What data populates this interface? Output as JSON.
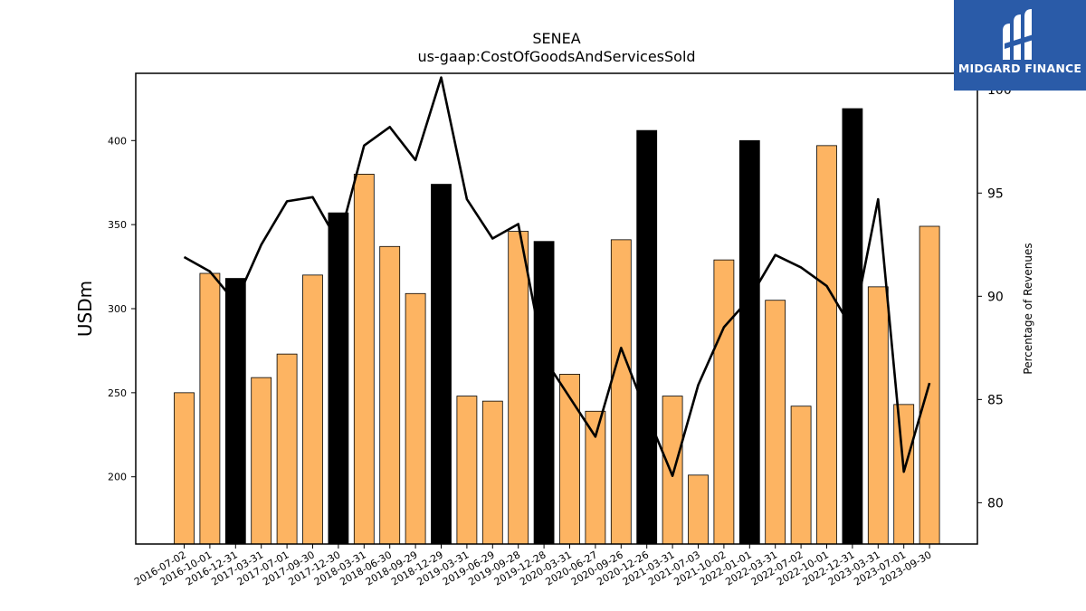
{
  "brand": {
    "name": "MIDGARD FINANCE",
    "bg": "#2a5ba8"
  },
  "chart_data": {
    "type": "bar",
    "title": "SENEA",
    "subtitle": "us-gaap:CostOfGoodsAndServicesSold",
    "ylabel": "USDm",
    "ylabel_right": "Percentage of Revenues",
    "ylim": [
      160,
      440
    ],
    "ylim_right": [
      78,
      100.8
    ],
    "yticks": [
      200,
      250,
      300,
      350,
      400
    ],
    "yticks_right": [
      80,
      85,
      90,
      95,
      100
    ],
    "colors": {
      "bar": "#fdb462",
      "bar_highlight": "#000000",
      "line": "#000000"
    },
    "categories": [
      "2016-07-02",
      "2016-10-01",
      "2016-12-31",
      "2017-03-31",
      "2017-07-01",
      "2017-09-30",
      "2017-12-30",
      "2018-03-31",
      "2018-06-30",
      "2018-09-29",
      "2018-12-29",
      "2019-03-31",
      "2019-06-29",
      "2019-09-28",
      "2019-12-28",
      "2020-03-31",
      "2020-06-27",
      "2020-09-26",
      "2020-12-26",
      "2021-03-31",
      "2021-07-03",
      "2021-10-02",
      "2022-01-01",
      "2022-03-31",
      "2022-07-02",
      "2022-10-01",
      "2022-12-31",
      "2023-03-31",
      "2023-07-01",
      "2023-09-30"
    ],
    "series": [
      {
        "values": [
          250,
          321,
          318,
          259,
          273,
          320,
          357,
          380,
          337,
          309,
          374,
          248,
          245,
          346,
          340,
          261,
          239,
          341,
          406,
          248,
          201,
          329,
          400,
          305,
          242,
          397,
          419,
          313,
          243,
          349
        ],
        "highlight": [
          false,
          false,
          true,
          false,
          false,
          false,
          true,
          false,
          false,
          false,
          true,
          false,
          false,
          false,
          true,
          false,
          false,
          false,
          true,
          false,
          false,
          false,
          true,
          false,
          false,
          false,
          true,
          false,
          false,
          false
        ]
      },
      {
        "axis": "right",
        "type": "line",
        "values": [
          91.9,
          91.2,
          89.7,
          92.5,
          94.6,
          94.8,
          92.6,
          97.3,
          98.2,
          96.6,
          100.6,
          94.7,
          92.8,
          93.5,
          87.0,
          85.1,
          83.2,
          87.5,
          84.3,
          81.3,
          85.7,
          88.5,
          89.9,
          92.0,
          91.4,
          90.5,
          88.4,
          94.7,
          81.5,
          85.8
        ]
      }
    ]
  }
}
